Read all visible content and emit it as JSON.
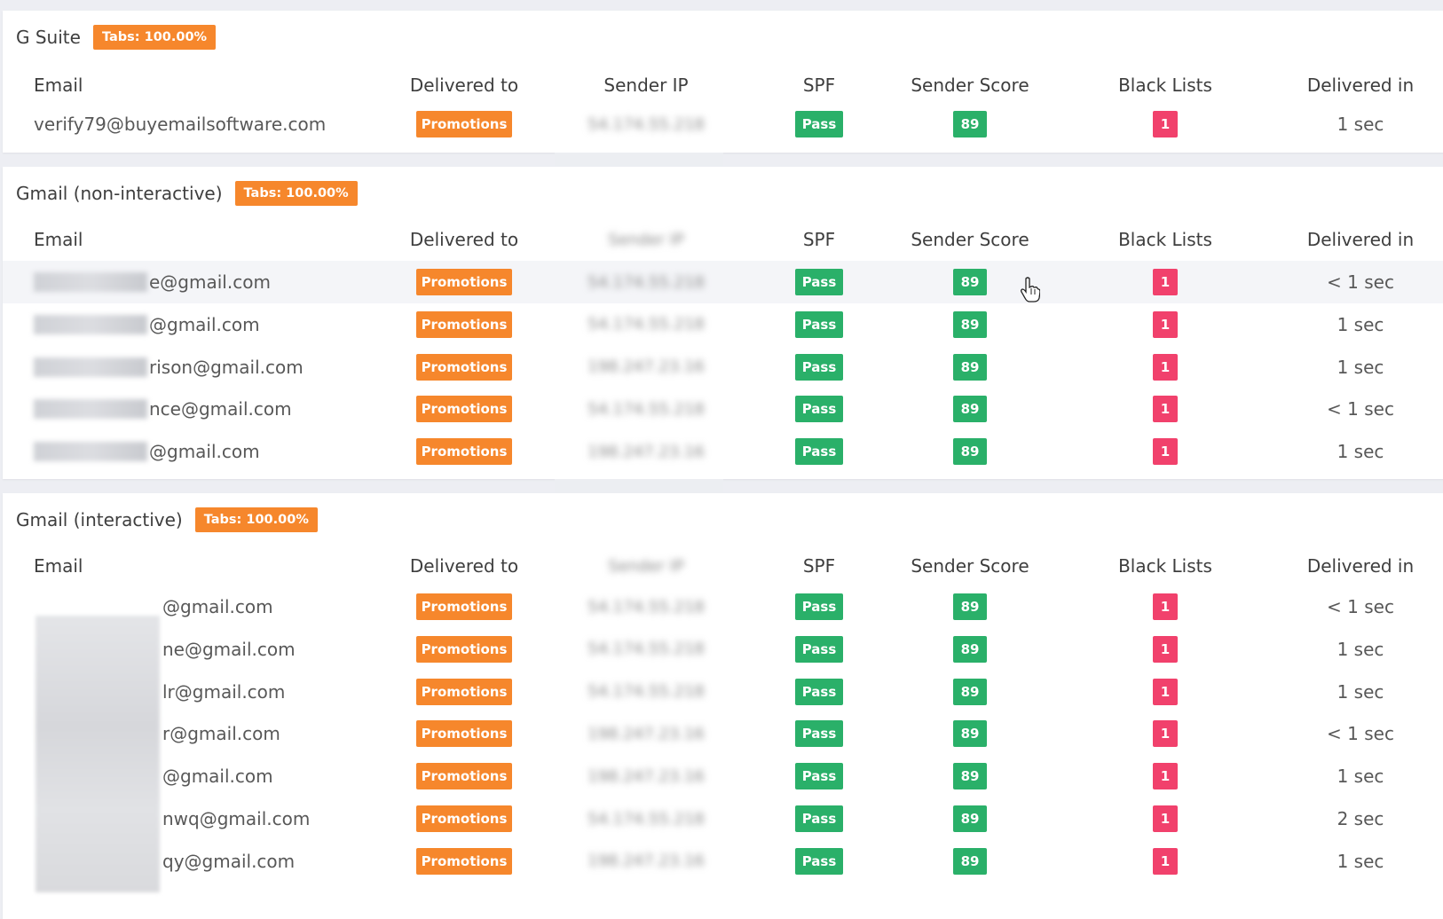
{
  "headers": {
    "email": "Email",
    "delivered_to": "Delivered to",
    "sender_ip": "Sender IP",
    "spf": "SPF",
    "sender_score": "Sender Score",
    "black_lists": "Black Lists",
    "delivered_in": "Delivered in"
  },
  "colors": {
    "promotions": "#f6872c",
    "pass": "#2ab069",
    "blacklist": "#f1416c",
    "tabs_badge": "#f6872c"
  },
  "gsuite": {
    "title": "G Suite",
    "tabs": "Tabs: 100.00%",
    "rows": [
      {
        "email": "verify79@buyemailsoftware.com",
        "delivered_to": "Promotions",
        "ip": "54.174.55.218",
        "spf": "Pass",
        "score": "89",
        "bl": "1",
        "time": "1 sec"
      }
    ]
  },
  "gmail_ni": {
    "title": "Gmail (non-interactive)",
    "tabs": "Tabs: 100.00%",
    "rows": [
      {
        "email": "e@gmail.com",
        "delivered_to": "Promotions",
        "ip": "54.174.55.218",
        "spf": "Pass",
        "score": "89",
        "bl": "1",
        "time": "< 1 sec"
      },
      {
        "email": "@gmail.com",
        "delivered_to": "Promotions",
        "ip": "54.174.55.218",
        "spf": "Pass",
        "score": "89",
        "bl": "1",
        "time": "1 sec"
      },
      {
        "email": "rison@gmail.com",
        "delivered_to": "Promotions",
        "ip": "198.247.23.16",
        "spf": "Pass",
        "score": "89",
        "bl": "1",
        "time": "1 sec"
      },
      {
        "email": "nce@gmail.com",
        "delivered_to": "Promotions",
        "ip": "54.174.55.218",
        "spf": "Pass",
        "score": "89",
        "bl": "1",
        "time": "< 1 sec"
      },
      {
        "email": "@gmail.com",
        "delivered_to": "Promotions",
        "ip": "198.247.23.16",
        "spf": "Pass",
        "score": "89",
        "bl": "1",
        "time": "1 sec"
      }
    ]
  },
  "gmail_i": {
    "title": "Gmail (interactive)",
    "tabs": "Tabs: 100.00%",
    "rows": [
      {
        "email": "@gmail.com",
        "delivered_to": "Promotions",
        "ip": "54.174.55.218",
        "spf": "Pass",
        "score": "89",
        "bl": "1",
        "time": "< 1 sec"
      },
      {
        "email": "ne@gmail.com",
        "delivered_to": "Promotions",
        "ip": "54.174.55.218",
        "spf": "Pass",
        "score": "89",
        "bl": "1",
        "time": "1 sec"
      },
      {
        "email": "lr@gmail.com",
        "delivered_to": "Promotions",
        "ip": "54.174.55.218",
        "spf": "Pass",
        "score": "89",
        "bl": "1",
        "time": "1 sec"
      },
      {
        "email": "r@gmail.com",
        "delivered_to": "Promotions",
        "ip": "198.247.23.16",
        "spf": "Pass",
        "score": "89",
        "bl": "1",
        "time": "< 1 sec"
      },
      {
        "email": "@gmail.com",
        "delivered_to": "Promotions",
        "ip": "198.247.23.16",
        "spf": "Pass",
        "score": "89",
        "bl": "1",
        "time": "1 sec"
      },
      {
        "email": "nwq@gmail.com",
        "delivered_to": "Promotions",
        "ip": "54.174.55.218",
        "spf": "Pass",
        "score": "89",
        "bl": "1",
        "time": "2 sec"
      },
      {
        "email": "qy@gmail.com",
        "delivered_to": "Promotions",
        "ip": "198.247.23.16",
        "spf": "Pass",
        "score": "89",
        "bl": "1",
        "time": "1 sec"
      }
    ]
  }
}
